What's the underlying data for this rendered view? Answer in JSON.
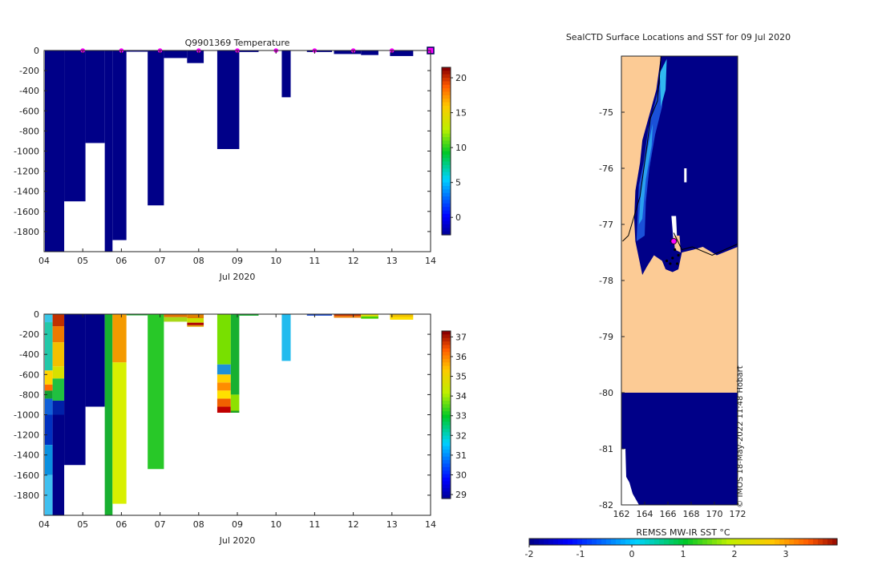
{
  "chart_data": [
    {
      "type": "heatmap",
      "name": "temperature-section",
      "title": "Q9901369  Temperature",
      "xlabel": "Jul 2020",
      "x_ticks": [
        "04",
        "05",
        "06",
        "07",
        "08",
        "09",
        "10",
        "11",
        "12",
        "13",
        "14"
      ],
      "xlim": [
        4,
        14
      ],
      "ylim": [
        -2000,
        0
      ],
      "y_ticks": [
        0,
        -200,
        -400,
        -600,
        -800,
        -1000,
        -1200,
        -1400,
        -1600,
        -1800
      ],
      "colorbar": {
        "range": [
          -2.5,
          21.5
        ],
        "ticks": [
          20,
          15,
          10,
          5,
          0
        ]
      },
      "profiles": [
        {
          "x0": 4.02,
          "x1": 4.52,
          "depth": 2000,
          "color": "#000088"
        },
        {
          "x0": 4.52,
          "x1": 5.07,
          "depth": 1500,
          "color": "#000088"
        },
        {
          "x0": 5.07,
          "x1": 5.57,
          "depth": 920,
          "color": "#000088"
        },
        {
          "x0": 5.57,
          "x1": 5.77,
          "depth": 2000,
          "color": "#000088"
        },
        {
          "x0": 5.77,
          "x1": 6.13,
          "depth": 1885,
          "color": "#000088"
        },
        {
          "x0": 6.13,
          "x1": 6.68,
          "depth": 5,
          "color": "#000088"
        },
        {
          "x0": 6.68,
          "x1": 7.1,
          "depth": 1540,
          "color": "#000088"
        },
        {
          "x0": 7.1,
          "x1": 7.7,
          "depth": 75,
          "color": "#000088"
        },
        {
          "x0": 7.7,
          "x1": 8.13,
          "depth": 125,
          "color": "#000088"
        },
        {
          "x0": 8.48,
          "x1": 9.05,
          "depth": 980,
          "color": "#000088"
        },
        {
          "x0": 9.05,
          "x1": 9.55,
          "depth": 15,
          "color": "#000088"
        },
        {
          "x0": 10.15,
          "x1": 10.38,
          "depth": 465,
          "color": "#000088"
        },
        {
          "x0": 10.8,
          "x1": 11.45,
          "depth": 15,
          "color": "#000088"
        },
        {
          "x0": 11.5,
          "x1": 12.2,
          "depth": 35,
          "color": "#000088"
        },
        {
          "x0": 12.2,
          "x1": 12.65,
          "depth": 45,
          "color": "#000088"
        },
        {
          "x0": 12.95,
          "x1": 13.55,
          "depth": 55,
          "color": "#000088"
        }
      ],
      "surface_markers_x": [
        5,
        6,
        7,
        8,
        9,
        10,
        11,
        12,
        13
      ],
      "last_marker_x": 14
    },
    {
      "type": "heatmap",
      "name": "salinity-section",
      "title": "",
      "xlabel": "Jul 2020",
      "x_ticks": [
        "04",
        "05",
        "06",
        "07",
        "08",
        "09",
        "10",
        "11",
        "12",
        "13",
        "14"
      ],
      "xlim": [
        4,
        14
      ],
      "ylim": [
        -2000,
        0
      ],
      "y_ticks": [
        0,
        -200,
        -400,
        -600,
        -800,
        -1000,
        -1200,
        -1400,
        -1600,
        -1800
      ],
      "colorbar": {
        "range": [
          28.8,
          37.3
        ],
        "ticks": [
          37,
          36,
          35,
          34,
          33,
          32,
          31,
          30,
          29
        ]
      },
      "profiles": [
        {
          "x0": 4.02,
          "x1": 4.22,
          "depth": 2000,
          "bands": [
            [
              0,
              80,
              "#39c6e6"
            ],
            [
              80,
              560,
              "#22c8a8"
            ],
            [
              560,
              700,
              "#ffd400"
            ],
            [
              700,
              760,
              "#ff6a00"
            ],
            [
              760,
              840,
              "#12a030"
            ],
            [
              840,
              1000,
              "#1060d8"
            ],
            [
              1000,
              1300,
              "#0030c0"
            ],
            [
              1300,
              1600,
              "#0a90e0"
            ],
            [
              1600,
              2000,
              "#40c0f0"
            ]
          ]
        },
        {
          "x0": 4.22,
          "x1": 4.52,
          "depth": 2000,
          "bands": [
            [
              0,
              120,
              "#c03000"
            ],
            [
              120,
              280,
              "#ee7a00"
            ],
            [
              280,
              520,
              "#f4c000"
            ],
            [
              520,
              640,
              "#d8e000"
            ],
            [
              640,
              860,
              "#20c040"
            ],
            [
              860,
              1000,
              "#0020a8"
            ],
            [
              1000,
              2000,
              "#000088"
            ]
          ]
        },
        {
          "x0": 4.52,
          "x1": 5.07,
          "depth": 1500,
          "bands": [
            [
              0,
              1500,
              "#000088"
            ]
          ]
        },
        {
          "x0": 5.07,
          "x1": 5.57,
          "depth": 920,
          "bands": [
            [
              0,
              920,
              "#000088"
            ]
          ]
        },
        {
          "x0": 5.57,
          "x1": 5.77,
          "depth": 2000,
          "bands": [
            [
              0,
              2000,
              "#18b030"
            ]
          ]
        },
        {
          "x0": 5.77,
          "x1": 6.13,
          "depth": 1885,
          "bands": [
            [
              0,
              480,
              "#f49a00"
            ],
            [
              480,
              1885,
              "#d8f000"
            ]
          ]
        },
        {
          "x0": 6.13,
          "x1": 6.68,
          "depth": 5,
          "bands": [
            [
              0,
              5,
              "#18b030"
            ]
          ]
        },
        {
          "x0": 6.68,
          "x1": 7.1,
          "depth": 1540,
          "bands": [
            [
              0,
              1540,
              "#28c828"
            ]
          ]
        },
        {
          "x0": 7.1,
          "x1": 7.7,
          "depth": 75,
          "bands": [
            [
              0,
              30,
              "#e07000"
            ],
            [
              30,
              75,
              "#a8d818"
            ]
          ]
        },
        {
          "x0": 7.7,
          "x1": 8.13,
          "depth": 125,
          "bands": [
            [
              0,
              40,
              "#e08000"
            ],
            [
              40,
              85,
              "#c8e000"
            ],
            [
              85,
              110,
              "#b00000"
            ],
            [
              110,
              125,
              "#e0a000"
            ]
          ]
        },
        {
          "x0": 8.48,
          "x1": 8.83,
          "depth": 980,
          "bands": [
            [
              0,
              500,
              "#78e000"
            ],
            [
              500,
              600,
              "#1e90d8"
            ],
            [
              600,
              680,
              "#ffd000"
            ],
            [
              680,
              760,
              "#ff8c00"
            ],
            [
              760,
              840,
              "#ffe000"
            ],
            [
              840,
              920,
              "#f06000"
            ],
            [
              920,
              980,
              "#c00000"
            ]
          ]
        },
        {
          "x0": 8.83,
          "x1": 9.05,
          "depth": 980,
          "bands": [
            [
              0,
              800,
              "#18b030"
            ],
            [
              800,
              960,
              "#8ee000"
            ],
            [
              960,
              980,
              "#20a020"
            ]
          ]
        },
        {
          "x0": 9.05,
          "x1": 9.55,
          "depth": 15,
          "bands": [
            [
              0,
              15,
              "#18b030"
            ]
          ]
        },
        {
          "x0": 10.15,
          "x1": 10.38,
          "depth": 465,
          "bands": [
            [
              0,
              465,
              "#22bbee"
            ]
          ]
        },
        {
          "x0": 10.8,
          "x1": 11.45,
          "depth": 15,
          "bands": [
            [
              0,
              15,
              "#2050d0"
            ]
          ]
        },
        {
          "x0": 11.5,
          "x1": 12.2,
          "depth": 35,
          "bands": [
            [
              0,
              18,
              "#c03000"
            ],
            [
              18,
              35,
              "#ee7a00"
            ]
          ]
        },
        {
          "x0": 12.2,
          "x1": 12.65,
          "depth": 45,
          "bands": [
            [
              0,
              22,
              "#e8e000"
            ],
            [
              22,
              45,
              "#48d000"
            ]
          ]
        },
        {
          "x0": 12.95,
          "x1": 13.55,
          "depth": 55,
          "bands": [
            [
              0,
              28,
              "#f0c000"
            ],
            [
              28,
              55,
              "#ffe000"
            ]
          ]
        }
      ]
    },
    {
      "type": "heatmap",
      "name": "sst-map",
      "title": "SealCTD Surface Locations and SST for 09 Jul 2020",
      "xlabel": "",
      "x_ticks": [
        "162",
        "164",
        "166",
        "168",
        "170",
        "172"
      ],
      "xlim": [
        162,
        172
      ],
      "y_ticks": [
        "-75",
        "-76",
        "-77",
        "-78",
        "-79",
        "-80",
        "-81",
        "-82"
      ],
      "ylim": [
        -82,
        -74
      ],
      "colorbar": {
        "label": "REMSS MW-IR SST °C",
        "range": [
          -2,
          4
        ],
        "ticks": [
          "-2",
          "-1",
          "0",
          "1",
          "2",
          "3"
        ]
      },
      "land_color": "#fccb95",
      "ocean_color": "#000088",
      "fronts": [
        [
          [
            162.1,
            -77.3
          ],
          [
            162.6,
            -77.2
          ],
          [
            163.6,
            -76.5
          ],
          [
            164.2,
            -75.6
          ],
          [
            164.5,
            -75.1
          ],
          [
            165.1,
            -74.8
          ],
          [
            165.3,
            -74.3
          ],
          [
            165.4,
            -74.0
          ]
        ],
        [
          [
            166.5,
            -77.15
          ],
          [
            167.2,
            -77.45
          ],
          [
            168.1,
            -77.4
          ],
          [
            169.8,
            -77.55
          ],
          [
            172,
            -77.35
          ]
        ]
      ],
      "surface_location": {
        "lon": 166.5,
        "lat": -77.3
      },
      "watermark": "© IMOS 18-May-2022 11:48 Hobart"
    }
  ]
}
